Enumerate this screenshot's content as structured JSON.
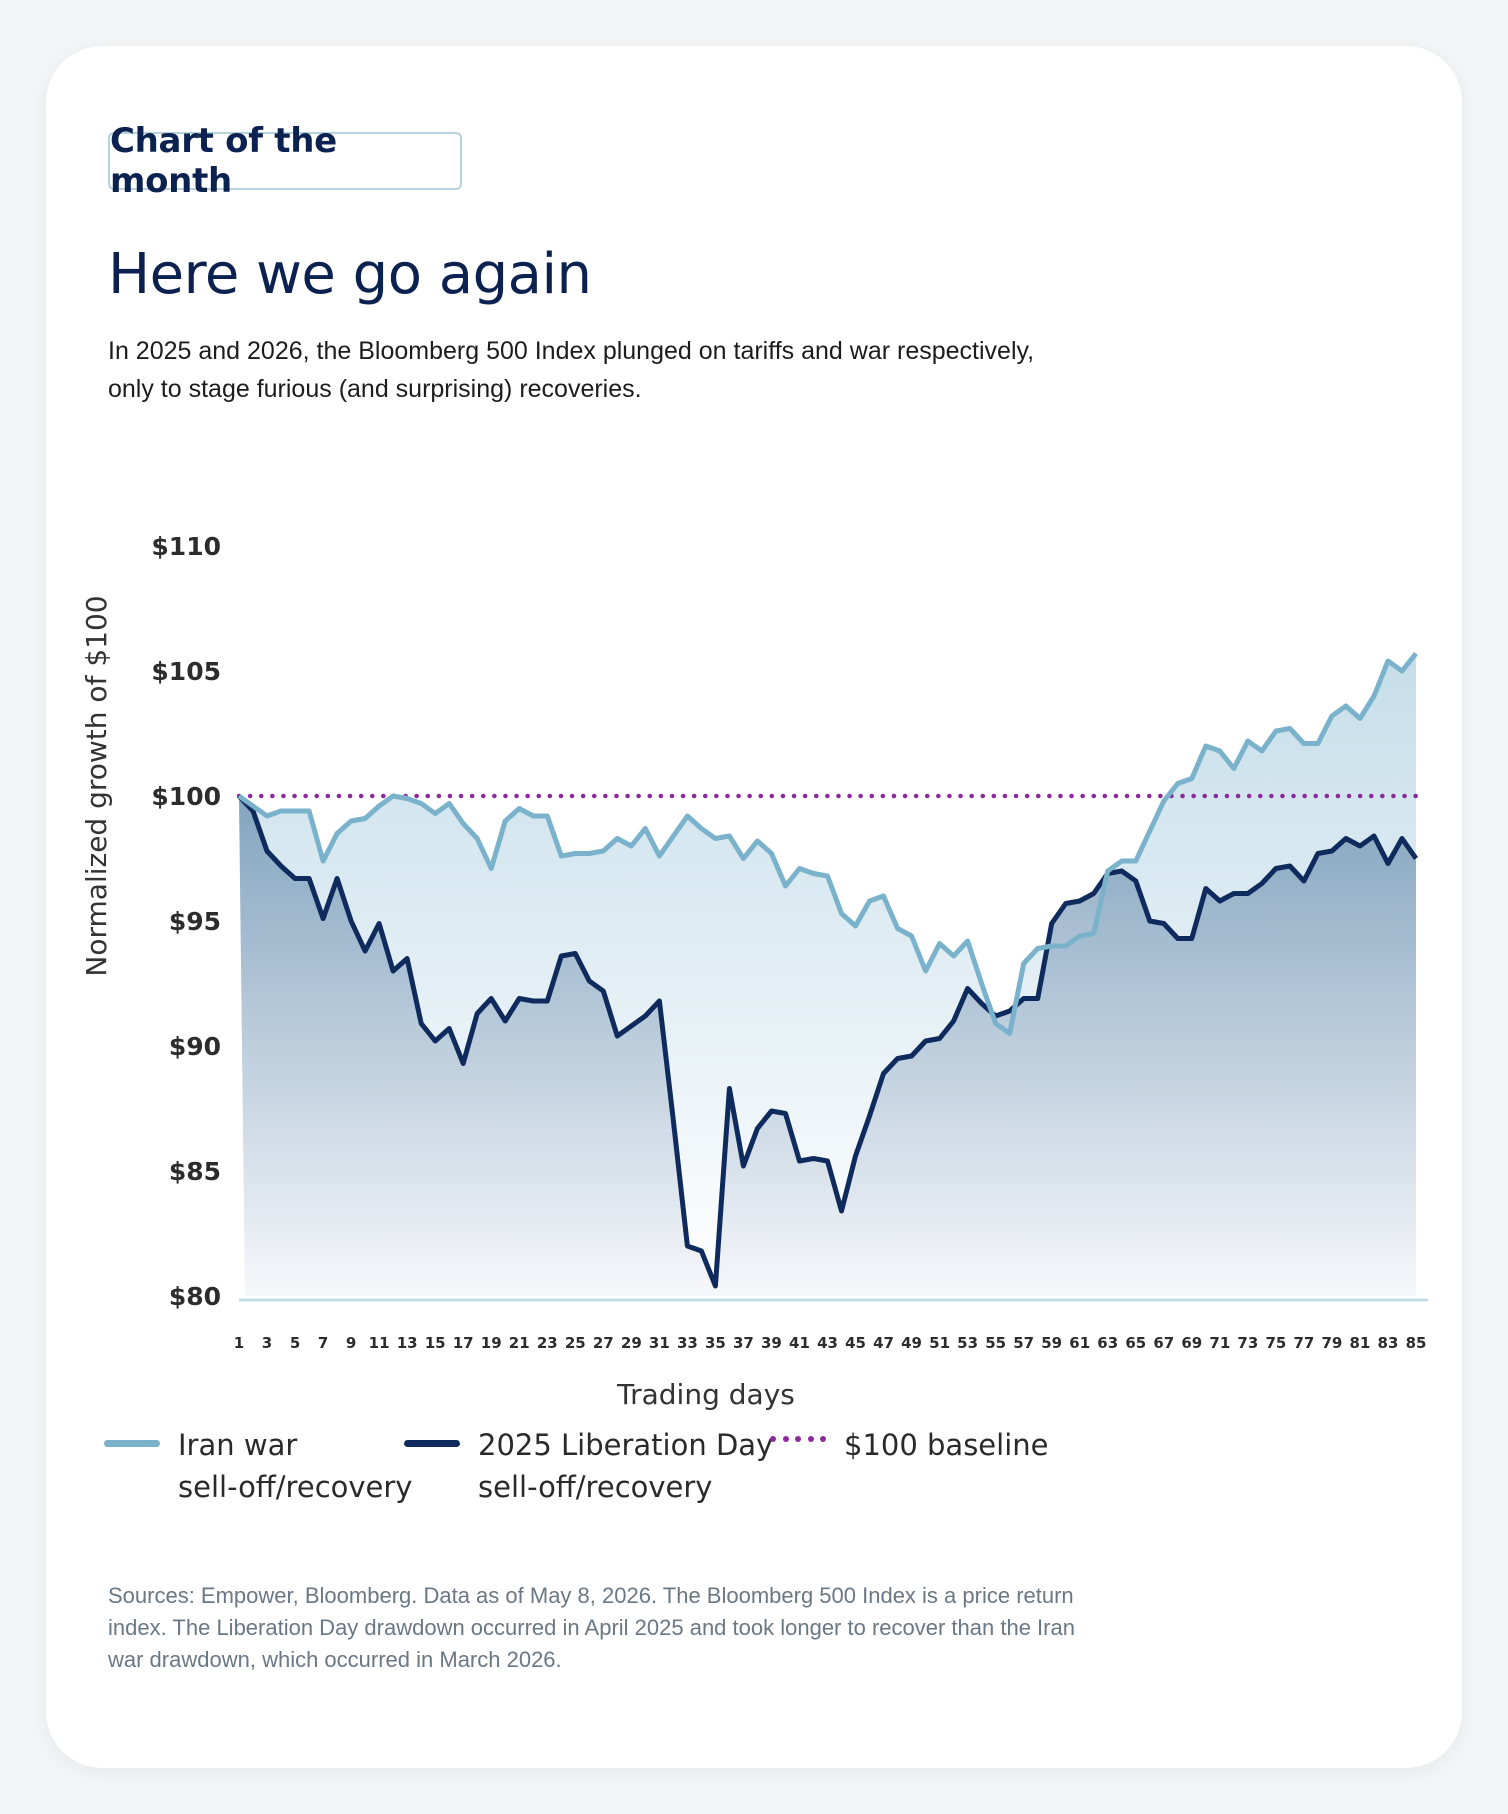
{
  "badge": "Chart of the month",
  "title": "Here we go again",
  "subtitle_lines": [
    "In 2025 and 2026, the Bloomberg 500 Index plunged on tariffs and war respectively,",
    "only to stage furious (and surprising) recoveries."
  ],
  "footnote_lines": [
    "Sources: Empower, Bloomberg. Data as of May 8, 2026. The Bloomberg 500 Index is a price return",
    "index. The Liberation Day drawdown occurred in April 2025 and took longer to recover than the Iran",
    "war drawdown, which occurred in March 2026."
  ],
  "legend": [
    {
      "line1": "Iran war",
      "line2": "sell-off/recovery",
      "color": "#7ab2cb",
      "style": "solid"
    },
    {
      "line1": "2025 Liberation Day",
      "line2": "sell-off/recovery",
      "color": "#0f2a5c",
      "style": "solid"
    },
    {
      "line1": "$100 baseline",
      "line2": "",
      "color": "#8b2a9c",
      "style": "dotted"
    }
  ],
  "chart_data": {
    "type": "area",
    "xlabel": "Trading days",
    "ylabel": "Normalized growth of $100",
    "x": [
      1,
      2,
      3,
      4,
      5,
      6,
      7,
      8,
      9,
      10,
      11,
      12,
      13,
      14,
      15,
      16,
      17,
      18,
      19,
      20,
      21,
      22,
      23,
      24,
      25,
      26,
      27,
      28,
      29,
      30,
      31,
      32,
      33,
      34,
      35,
      36,
      37,
      38,
      39,
      40,
      41,
      42,
      43,
      44,
      45,
      46,
      47,
      48,
      49,
      50,
      51,
      52,
      53,
      54,
      55,
      56,
      57,
      58,
      59,
      60,
      61,
      62,
      63,
      64,
      65,
      66,
      67,
      68,
      69,
      70,
      71,
      72,
      73,
      74,
      75,
      76,
      77,
      78,
      79,
      80,
      81,
      82,
      83,
      84,
      85
    ],
    "x_tick_labels": [
      "1",
      "3",
      "5",
      "7",
      "9",
      "11",
      "13",
      "15",
      "17",
      "19",
      "21",
      "23",
      "25",
      "27",
      "29",
      "31",
      "33",
      "35",
      "37",
      "39",
      "41",
      "43",
      "45",
      "47",
      "49",
      "51",
      "53",
      "55",
      "57",
      "59",
      "61",
      "63",
      "65",
      "67",
      "69",
      "71",
      "73",
      "75",
      "77",
      "79",
      "81",
      "83",
      "85"
    ],
    "ylim": [
      80,
      110
    ],
    "y_ticks": [
      80,
      85,
      90,
      95,
      100,
      105,
      110
    ],
    "y_tick_labels": [
      "$80",
      "$85",
      "$90",
      "$95",
      "$100",
      "$105",
      "$110"
    ],
    "baseline": 100,
    "series": [
      {
        "name": "Iran war sell-off/recovery",
        "color": "#7ab2cb",
        "values": [
          100.0,
          99.6,
          99.2,
          99.4,
          99.4,
          99.4,
          97.4,
          98.5,
          99.0,
          99.1,
          99.6,
          100.0,
          99.9,
          99.7,
          99.3,
          99.7,
          98.9,
          98.3,
          97.1,
          99.0,
          99.5,
          99.2,
          99.2,
          97.6,
          97.7,
          97.7,
          97.8,
          98.3,
          98.0,
          98.7,
          97.6,
          98.4,
          99.2,
          98.7,
          98.3,
          98.4,
          97.5,
          98.2,
          97.7,
          96.4,
          97.1,
          96.9,
          96.8,
          95.3,
          94.8,
          95.8,
          96.0,
          94.7,
          94.4,
          93.0,
          94.1,
          93.6,
          94.2,
          92.5,
          90.9,
          90.5,
          93.3,
          93.9,
          94.0,
          94.0,
          94.4,
          94.5,
          97.0,
          97.4,
          97.4,
          98.6,
          99.8,
          100.5,
          100.7,
          102.0,
          101.8,
          101.1,
          102.2,
          101.8,
          102.6,
          102.7,
          102.1,
          102.1,
          103.2,
          103.6,
          103.1,
          104.0,
          105.4,
          105.0,
          105.7
        ]
      },
      {
        "name": "2025 Liberation Day sell-off/recovery",
        "color": "#0f2a5c",
        "values": [
          100.0,
          99.4,
          97.8,
          97.2,
          96.7,
          96.7,
          95.1,
          96.7,
          95.0,
          93.8,
          94.9,
          93.0,
          93.5,
          90.9,
          90.2,
          90.7,
          89.3,
          91.3,
          91.9,
          91.0,
          91.9,
          91.8,
          91.8,
          93.6,
          93.7,
          92.6,
          92.2,
          90.4,
          90.8,
          91.2,
          91.8,
          87.0,
          82.0,
          81.8,
          80.4,
          88.3,
          85.2,
          86.7,
          87.4,
          87.3,
          85.4,
          85.5,
          85.4,
          83.4,
          85.6,
          87.2,
          88.9,
          89.5,
          89.6,
          90.2,
          90.3,
          91.0,
          92.3,
          91.7,
          91.2,
          91.4,
          91.9,
          91.9,
          94.9,
          95.7,
          95.8,
          96.1,
          96.9,
          97.0,
          96.6,
          95.0,
          94.9,
          94.3,
          94.3,
          96.3,
          95.8,
          96.1,
          96.1,
          96.5,
          97.1,
          97.2,
          96.6,
          97.7,
          97.8,
          98.3,
          98.0,
          98.4,
          97.3,
          98.3,
          97.5
        ]
      }
    ],
    "grid": false,
    "legend_position": "bottom-left"
  }
}
